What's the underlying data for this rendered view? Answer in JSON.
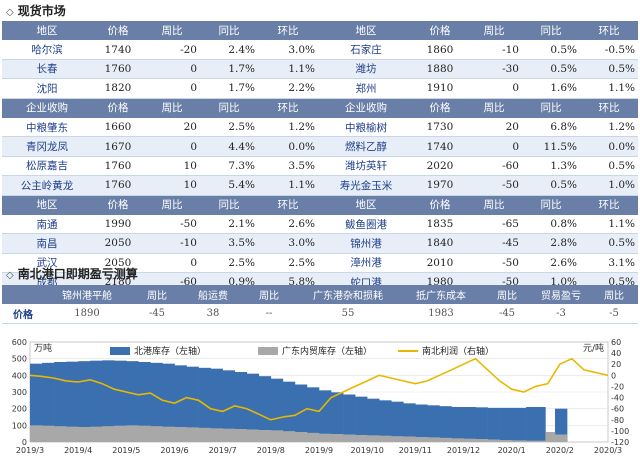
{
  "sections": {
    "spot": "现货市场",
    "profit": "南北港口即期盈亏测算"
  },
  "spot_table": {
    "groups": [
      {
        "header": [
          "地区",
          "价格",
          "周比",
          "同比",
          "环比",
          "地区",
          "价格",
          "周比",
          "同比",
          "环比"
        ],
        "rows": [
          [
            "哈尔滨",
            "1740",
            "-20",
            "2.4%",
            "3.0%",
            "石家庄",
            "1860",
            "-10",
            "0.5%",
            "-0.5%"
          ],
          [
            "长春",
            "1760",
            "0",
            "1.7%",
            "1.1%",
            "潍坊",
            "1880",
            "-30",
            "0.5%",
            "0.5%"
          ],
          [
            "沈阳",
            "1820",
            "0",
            "1.7%",
            "2.2%",
            "郑州",
            "1910",
            "0",
            "1.6%",
            "1.1%"
          ]
        ]
      },
      {
        "header": [
          "企业收购",
          "价格",
          "周比",
          "同比",
          "环比",
          "企业收购",
          "价格",
          "周比",
          "同比",
          "环比"
        ],
        "rows": [
          [
            "中粮肇东",
            "1660",
            "20",
            "2.5%",
            "1.2%",
            "中粮榆树",
            "1730",
            "20",
            "6.8%",
            "1.2%"
          ],
          [
            "青冈龙凤",
            "1670",
            "0",
            "4.4%",
            "0.0%",
            "燃料乙醇",
            "1740",
            "0",
            "11.5%",
            "0.0%"
          ],
          [
            "松原嘉吉",
            "1760",
            "10",
            "7.3%",
            "3.5%",
            "潍坊英轩",
            "2020",
            "-60",
            "1.3%",
            "0.5%"
          ],
          [
            "公主岭黄龙",
            "1760",
            "10",
            "5.4%",
            "1.1%",
            "寿光金玉米",
            "1970",
            "-50",
            "0.5%",
            "1.0%"
          ]
        ]
      },
      {
        "header": [
          "地区",
          "价格",
          "周比",
          "同比",
          "环比",
          "地区",
          "价格",
          "周比",
          "同比",
          "环比"
        ],
        "rows": [
          [
            "南通",
            "1990",
            "-50",
            "2.1%",
            "2.6%",
            "鲅鱼圈港",
            "1835",
            "-65",
            "0.8%",
            "1.1%"
          ],
          [
            "南昌",
            "2050",
            "-10",
            "3.5%",
            "3.0%",
            "锦州港",
            "1840",
            "-45",
            "2.8%",
            "0.5%"
          ],
          [
            "武汉",
            "2050",
            "0",
            "2.5%",
            "2.5%",
            "漳州港",
            "2010",
            "-50",
            "2.6%",
            "3.1%"
          ],
          [
            "成都",
            "2180",
            "-60",
            "0.9%",
            "5.8%",
            "蛇口港",
            "1980",
            "-50",
            "1.0%",
            "0.5%"
          ]
        ]
      }
    ]
  },
  "profit_table": {
    "header": [
      "",
      "锦州港平舱",
      "周比",
      "船运费",
      "周比",
      "广东港杂和损耗",
      "抵广东成本",
      "周比",
      "贸易盈亏",
      "周比"
    ],
    "row": [
      "价格",
      "1890",
      "-45",
      "38",
      "--",
      "55",
      "1983",
      "-45",
      "-3",
      "-5"
    ]
  },
  "chart_data": {
    "type": "area",
    "ylabel_left": "万吨",
    "ylabel_right": "元/吨",
    "ylim_left": [
      0,
      600
    ],
    "yticks_left": [
      0,
      100,
      200,
      300,
      400,
      500,
      600
    ],
    "ylim_right": [
      -120,
      60
    ],
    "yticks_right": [
      -120,
      -100,
      -80,
      -60,
      -40,
      -20,
      0,
      20,
      40,
      60
    ],
    "x_ticks": [
      "2019/3",
      "2019/4",
      "2019/5",
      "2019/6",
      "2019/7",
      "2019/8",
      "2019/9",
      "2019/10",
      "2019/11",
      "2019/12",
      "2020/1",
      "2020/2",
      "2020/3"
    ],
    "legend_position": "top",
    "series": [
      {
        "name": "北港库存（左轴）",
        "axis": "left",
        "kind": "area",
        "color": "#3a6fb0",
        "x": [
          0,
          0.25,
          0.5,
          0.75,
          1,
          1.25,
          1.5,
          1.75,
          2,
          2.25,
          2.5,
          2.75,
          3,
          3.25,
          3.5,
          3.75,
          4,
          4.25,
          4.5,
          4.75,
          5,
          5.25,
          5.5,
          5.75,
          6,
          6.25,
          6.5,
          6.75,
          7,
          7.25,
          7.5,
          7.75,
          8,
          8.25,
          8.5,
          8.75,
          9,
          9.25,
          9.5,
          9.75,
          10,
          10.3,
          10.7,
          10.9
        ],
        "values": [
          470,
          475,
          480,
          482,
          485,
          488,
          490,
          488,
          485,
          480,
          475,
          470,
          460,
          452,
          445,
          440,
          430,
          420,
          410,
          395,
          380,
          362,
          345,
          328,
          310,
          298,
          285,
          272,
          260,
          250,
          242,
          232,
          225,
          220,
          215,
          210,
          210,
          208,
          205,
          205,
          205,
          210,
          0,
          200
        ]
      },
      {
        "name": "广东内贸库存（左轴）",
        "axis": "left",
        "kind": "area",
        "color": "#a8a8a8",
        "x": [
          0,
          0.25,
          0.5,
          0.75,
          1,
          1.25,
          1.5,
          1.75,
          2,
          2.25,
          2.5,
          2.75,
          3,
          3.25,
          3.5,
          3.75,
          4,
          4.25,
          4.5,
          4.75,
          5,
          5.25,
          5.5,
          5.75,
          6,
          6.25,
          6.5,
          6.75,
          7,
          7.25,
          7.5,
          7.75,
          8,
          8.25,
          8.5,
          8.75,
          9,
          9.25,
          9.5,
          9.75,
          10,
          10.3,
          10.7,
          10.9
        ],
        "values": [
          100,
          98,
          95,
          92,
          90,
          92,
          95,
          98,
          100,
          98,
          95,
          92,
          90,
          88,
          85,
          82,
          80,
          78,
          75,
          72,
          70,
          65,
          60,
          55,
          50,
          48,
          45,
          42,
          40,
          38,
          35,
          33,
          30,
          28,
          25,
          22,
          20,
          18,
          15,
          12,
          10,
          8,
          60,
          45
        ]
      },
      {
        "name": "南北利润（右轴）",
        "axis": "right",
        "kind": "line",
        "color": "#e8b800",
        "x": [
          0,
          0.25,
          0.5,
          0.75,
          1,
          1.25,
          1.5,
          1.75,
          2,
          2.25,
          2.5,
          2.75,
          3,
          3.25,
          3.5,
          3.75,
          4,
          4.25,
          4.5,
          4.75,
          5,
          5.25,
          5.5,
          5.75,
          6,
          6.25,
          6.5,
          6.75,
          7,
          7.25,
          7.5,
          7.75,
          8,
          8.25,
          8.5,
          8.75,
          9,
          9.25,
          9.5,
          9.75,
          10,
          10.25,
          10.5,
          10.75,
          11,
          11.25,
          11.5,
          11.75,
          12
        ],
        "values": [
          0,
          -2,
          -5,
          -10,
          -12,
          -8,
          -15,
          -25,
          -30,
          -35,
          -32,
          -45,
          -50,
          -40,
          -45,
          -60,
          -65,
          -55,
          -60,
          -70,
          -80,
          -75,
          -72,
          -60,
          -65,
          -40,
          -30,
          -20,
          -10,
          0,
          -5,
          -10,
          -15,
          -10,
          0,
          10,
          20,
          30,
          10,
          -10,
          -25,
          -30,
          -20,
          -15,
          20,
          30,
          10,
          5,
          0
        ]
      }
    ]
  }
}
